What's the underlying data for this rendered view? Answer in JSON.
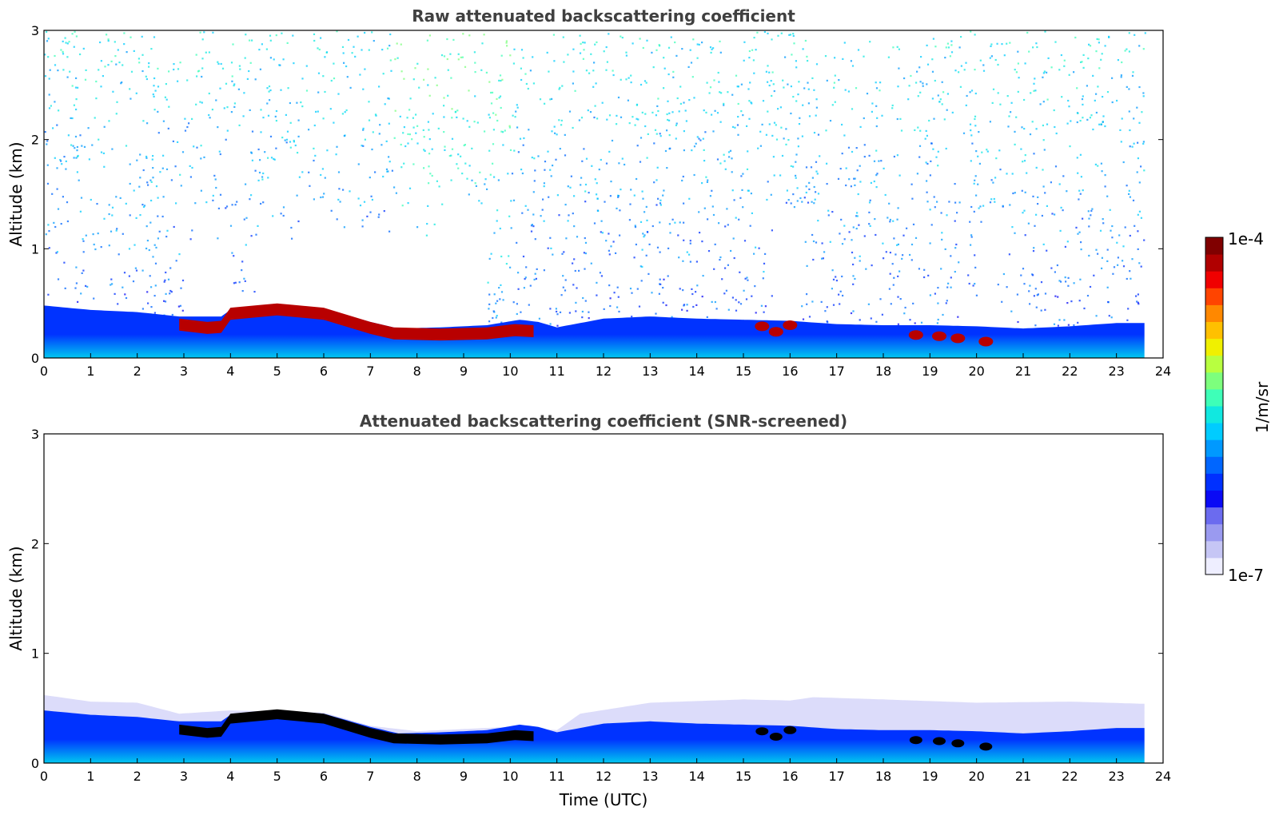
{
  "chart_data": [
    {
      "type": "heatmap",
      "title": "Raw attenuated backscattering coefficient",
      "xlabel": "",
      "ylabel": "Altitude (km)",
      "xlim": [
        0,
        24
      ],
      "ylim": [
        0,
        3
      ],
      "xticks": [
        "0",
        "1",
        "2",
        "3",
        "4",
        "5",
        "6",
        "7",
        "8",
        "9",
        "10",
        "11",
        "12",
        "13",
        "14",
        "15",
        "16",
        "17",
        "18",
        "19",
        "20",
        "21",
        "22",
        "23",
        "24"
      ],
      "yticks": [
        "0",
        "1",
        "2",
        "3"
      ],
      "data_end_time": 23.6,
      "boundary_layer_top": [
        [
          0,
          0.48
        ],
        [
          1,
          0.44
        ],
        [
          2,
          0.42
        ],
        [
          2.9,
          0.38
        ],
        [
          3.8,
          0.38
        ],
        [
          4,
          0.44
        ],
        [
          5,
          0.48
        ],
        [
          6,
          0.45
        ],
        [
          7,
          0.33
        ],
        [
          7.6,
          0.27
        ],
        [
          8.5,
          0.28
        ],
        [
          9.5,
          0.3
        ],
        [
          10.2,
          0.35
        ],
        [
          10.6,
          0.33
        ],
        [
          11,
          0.28
        ],
        [
          12,
          0.36
        ],
        [
          13,
          0.38
        ],
        [
          14,
          0.36
        ],
        [
          15,
          0.35
        ],
        [
          16,
          0.34
        ],
        [
          17,
          0.31
        ],
        [
          18,
          0.3
        ],
        [
          19,
          0.3
        ],
        [
          20,
          0.29
        ],
        [
          21,
          0.27
        ],
        [
          22,
          0.29
        ],
        [
          23,
          0.32
        ],
        [
          23.6,
          0.32
        ]
      ],
      "cloud_layer": [
        [
          2.9,
          0.3
        ],
        [
          3.5,
          0.27
        ],
        [
          3.8,
          0.28
        ],
        [
          4,
          0.4
        ],
        [
          5,
          0.44
        ],
        [
          6,
          0.4
        ],
        [
          7,
          0.27
        ],
        [
          7.5,
          0.22
        ],
        [
          8.5,
          0.21
        ],
        [
          9.5,
          0.22
        ],
        [
          10.1,
          0.25
        ],
        [
          10.5,
          0.24
        ]
      ],
      "cloud_patches": [
        [
          15.4,
          0.29
        ],
        [
          15.7,
          0.24
        ],
        [
          16.0,
          0.3
        ],
        [
          18.7,
          0.21
        ],
        [
          19.2,
          0.2
        ],
        [
          19.6,
          0.18
        ],
        [
          20.2,
          0.15
        ]
      ],
      "clear_gaps": [
        [
          3.0,
          4.0
        ],
        [
          4.5,
          9.5
        ],
        [
          15.6,
          16.2
        ],
        [
          19.6,
          19.8
        ],
        [
          20.0,
          20.4
        ]
      ]
    },
    {
      "type": "heatmap",
      "title": "Attenuated backscattering coefficient (SNR-screened)",
      "xlabel": "Time (UTC)",
      "ylabel": "Altitude (km)",
      "xlim": [
        0,
        24
      ],
      "ylim": [
        0,
        3
      ],
      "xticks": [
        "0",
        "1",
        "2",
        "3",
        "4",
        "5",
        "6",
        "7",
        "8",
        "9",
        "10",
        "11",
        "12",
        "13",
        "14",
        "15",
        "16",
        "17",
        "18",
        "19",
        "20",
        "21",
        "22",
        "23",
        "24"
      ],
      "yticks": [
        "0",
        "1",
        "2",
        "3"
      ],
      "data_end_time": 23.6,
      "screen_top": [
        [
          0,
          0.62
        ],
        [
          1,
          0.56
        ],
        [
          2,
          0.55
        ],
        [
          2.9,
          0.45
        ],
        [
          4,
          0.48
        ],
        [
          6,
          0.46
        ],
        [
          7,
          0.34
        ],
        [
          8,
          0.29
        ],
        [
          10,
          0.33
        ],
        [
          11,
          0.3
        ],
        [
          11.5,
          0.45
        ],
        [
          13,
          0.55
        ],
        [
          15,
          0.58
        ],
        [
          16,
          0.57
        ],
        [
          16.5,
          0.6
        ],
        [
          18,
          0.58
        ],
        [
          20,
          0.55
        ],
        [
          22,
          0.56
        ],
        [
          23.6,
          0.54
        ]
      ]
    }
  ],
  "colorbar": {
    "max_label": "1e-4",
    "min_label": "1e-7",
    "unit_label": "1/m/sr",
    "colors": [
      "#eeeeff",
      "#c6c6f5",
      "#9a9af0",
      "#6b6bef",
      "#0a0af5",
      "#0030ff",
      "#0066ff",
      "#0099ff",
      "#00ccff",
      "#11e8e0",
      "#3effb8",
      "#7dff7d",
      "#b8ff40",
      "#f0f000",
      "#ffc000",
      "#ff8800",
      "#ff4400",
      "#f00000",
      "#b00000",
      "#800000"
    ]
  },
  "style": {
    "title_color": "#404040",
    "bl_color_low": "#00c8f0",
    "bl_color_high": "#0033ff",
    "cloud_red": "#b80000",
    "cloud_black": "#000000"
  }
}
